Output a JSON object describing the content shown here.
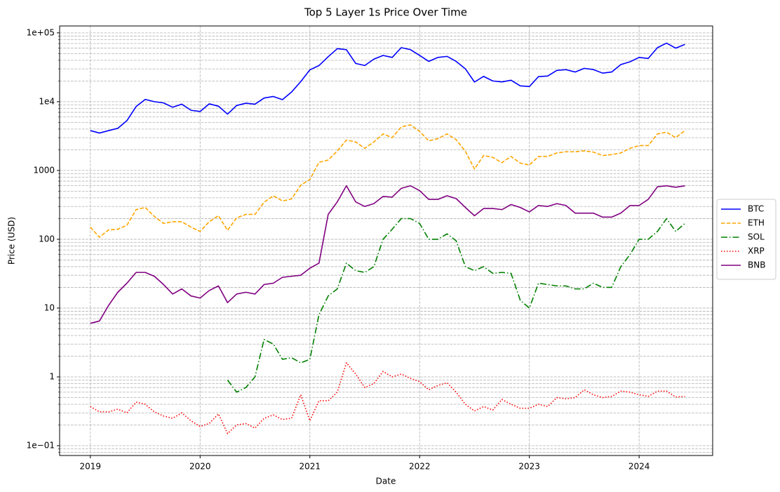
{
  "chart_data": {
    "type": "line",
    "title": "Top 5 Layer 1s Price Over Time",
    "x_label": "Date",
    "y_label": "Price (USD)",
    "log_y": true,
    "grid": true,
    "legend": "right",
    "xlim": [
      2018.72,
      2024.67
    ],
    "xticks": [
      2019,
      2020,
      2021,
      2022,
      2023,
      2024
    ],
    "ylim": [
      0.072,
      126000
    ],
    "yticks": [
      {
        "value": 0.1,
        "label": "1e−01"
      },
      1,
      10,
      100,
      1000,
      {
        "value": 10000,
        "label": "1e4"
      },
      {
        "value": 100000,
        "label": "1e+05"
      }
    ],
    "yminorticks": [
      0.08,
      0.09,
      0.2,
      0.3,
      0.4,
      0.5,
      0.6,
      0.7,
      0.8,
      0.9,
      2,
      3,
      4,
      5,
      6,
      7,
      8,
      9,
      20,
      30,
      40,
      50,
      60,
      70,
      80,
      90,
      200,
      300,
      400,
      500,
      600,
      700,
      800,
      900,
      2000,
      3000,
      4000,
      5000,
      6000,
      7000,
      8000,
      9000,
      20000,
      30000,
      40000,
      50000,
      60000,
      70000,
      80000,
      90000
    ],
    "x": [
      2019,
      2019.083,
      2019.167,
      2019.25,
      2019.333,
      2019.417,
      2019.5,
      2019.583,
      2019.667,
      2019.75,
      2019.833,
      2019.917,
      2020,
      2020.083,
      2020.167,
      2020.25,
      2020.333,
      2020.417,
      2020.5,
      2020.583,
      2020.667,
      2020.75,
      2020.833,
      2020.917,
      2021,
      2021.083,
      2021.167,
      2021.25,
      2021.333,
      2021.417,
      2021.5,
      2021.583,
      2021.667,
      2021.75,
      2021.833,
      2021.917,
      2022,
      2022.083,
      2022.167,
      2022.25,
      2022.333,
      2022.417,
      2022.5,
      2022.583,
      2022.667,
      2022.75,
      2022.833,
      2022.917,
      2023,
      2023.083,
      2023.167,
      2023.25,
      2023.333,
      2023.417,
      2023.5,
      2023.583,
      2023.667,
      2023.75,
      2023.833,
      2023.917,
      2024,
      2024.083,
      2024.167,
      2024.25,
      2024.333,
      2024.417
    ],
    "series": [
      {
        "name": "BTC",
        "color": "#0000ff",
        "linestyle": "solid",
        "values": [
          3800,
          3500,
          3800,
          4100,
          5300,
          8500,
          10800,
          10000,
          9600,
          8300,
          9200,
          7500,
          7200,
          9300,
          8600,
          6600,
          8800,
          9500,
          9200,
          11300,
          11900,
          10700,
          13800,
          19600,
          29000,
          33500,
          45000,
          59000,
          57000,
          36000,
          33500,
          41500,
          47000,
          44000,
          61000,
          57000,
          47000,
          38500,
          44000,
          45500,
          38500,
          30000,
          19300,
          23300,
          20000,
          19400,
          20500,
          17000,
          16600,
          23100,
          23600,
          28500,
          29200,
          27000,
          30500,
          29300,
          26000,
          27000,
          34600,
          38000,
          44000,
          42500,
          61000,
          71000,
          60000,
          68000
        ]
      },
      {
        "name": "ETH",
        "color": "#ffa500",
        "linestyle": "dashed",
        "values": [
          150,
          107,
          137,
          140,
          160,
          270,
          290,
          215,
          170,
          180,
          180,
          150,
          130,
          180,
          220,
          135,
          205,
          230,
          230,
          345,
          430,
          360,
          385,
          610,
          740,
          1310,
          1420,
          1920,
          2770,
          2600,
          2100,
          2600,
          3400,
          3000,
          4300,
          4600,
          3700,
          2700,
          2900,
          3400,
          2800,
          1900,
          1050,
          1650,
          1550,
          1300,
          1600,
          1280,
          1200,
          1600,
          1600,
          1800,
          1870,
          1870,
          1930,
          1850,
          1650,
          1700,
          1800,
          2100,
          2300,
          2300,
          3400,
          3600,
          3000,
          3800
        ]
      },
      {
        "name": "SOL",
        "color": "#008000",
        "linestyle": "dashdot",
        "values": [
          null,
          null,
          null,
          null,
          null,
          null,
          null,
          null,
          null,
          null,
          null,
          null,
          null,
          null,
          null,
          0.9,
          0.6,
          0.7,
          1.0,
          3.5,
          3.0,
          1.8,
          1.9,
          1.6,
          1.8,
          8,
          15,
          19,
          45,
          35,
          33,
          40,
          100,
          140,
          200,
          200,
          170,
          100,
          100,
          120,
          95,
          40,
          35,
          40,
          32,
          33,
          32,
          13,
          10,
          23,
          22,
          21,
          21,
          19,
          19,
          23,
          20,
          20,
          40,
          60,
          100,
          100,
          130,
          200,
          130,
          170
        ]
      },
      {
        "name": "XRP",
        "color": "#ff0000",
        "linestyle": "dotted",
        "values": [
          0.37,
          0.31,
          0.31,
          0.34,
          0.3,
          0.43,
          0.4,
          0.31,
          0.27,
          0.25,
          0.3,
          0.23,
          0.19,
          0.21,
          0.29,
          0.15,
          0.2,
          0.21,
          0.18,
          0.25,
          0.28,
          0.24,
          0.25,
          0.55,
          0.23,
          0.45,
          0.45,
          0.6,
          1.6,
          1.1,
          0.7,
          0.8,
          1.2,
          1.0,
          1.1,
          0.95,
          0.85,
          0.65,
          0.75,
          0.82,
          0.6,
          0.4,
          0.32,
          0.37,
          0.33,
          0.47,
          0.4,
          0.35,
          0.35,
          0.4,
          0.37,
          0.5,
          0.48,
          0.5,
          0.65,
          0.55,
          0.5,
          0.52,
          0.62,
          0.6,
          0.55,
          0.52,
          0.62,
          0.62,
          0.51,
          0.52
        ]
      },
      {
        "name": "BNB",
        "color": "#800080",
        "linestyle": "solid",
        "values": [
          6,
          6.5,
          11,
          17,
          23,
          33,
          33,
          29,
          22,
          16,
          19,
          15,
          14,
          18,
          21,
          12,
          16,
          17,
          16,
          22,
          23,
          28,
          29,
          30,
          38,
          45,
          230,
          350,
          600,
          350,
          300,
          330,
          420,
          410,
          550,
          600,
          510,
          380,
          380,
          430,
          390,
          290,
          220,
          280,
          280,
          270,
          320,
          290,
          250,
          310,
          300,
          330,
          310,
          240,
          240,
          240,
          210,
          210,
          240,
          310,
          310,
          380,
          580,
          600,
          570,
          600
        ]
      }
    ]
  }
}
